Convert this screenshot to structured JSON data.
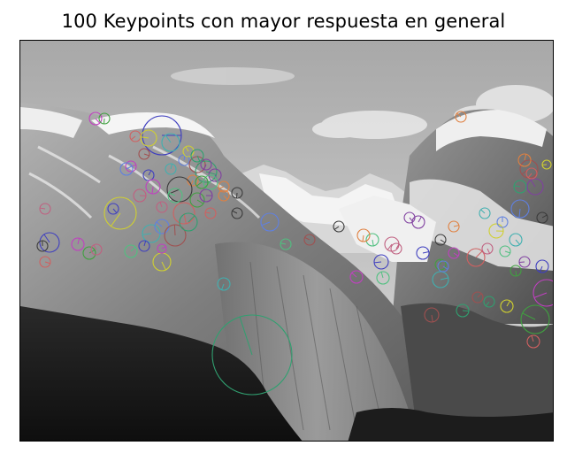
{
  "figure": {
    "title": "100 Keypoints con mayor respuesta en general"
  },
  "image": {
    "description_colors": {
      "sky_top": "#a8a8a8",
      "sky_bottom": "#dcdcdc",
      "snow": "#f2f2f2",
      "rock_mid": "#8c8c8c",
      "rock_dark": "#4a4a4a",
      "forest": "#1e1e1e"
    }
  },
  "keypoint_palette": [
    "#3f3fbf",
    "#c040c0",
    "#40a040",
    "#d06060",
    "#d0d030",
    "#40b0b0",
    "#6080e0",
    "#a05050",
    "#30a070",
    "#8040a0",
    "#e08040",
    "#3a3a3a",
    "#50c080",
    "#c06080"
  ]
}
